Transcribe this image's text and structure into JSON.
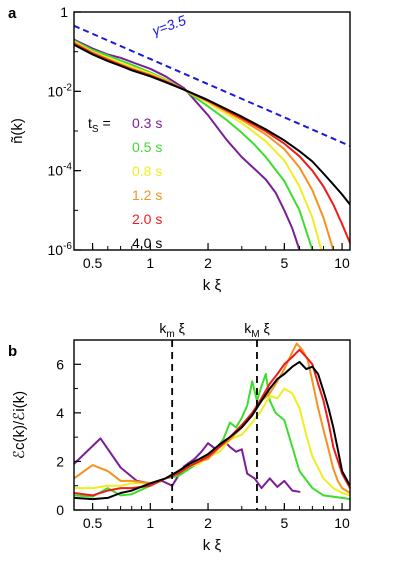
{
  "colors": {
    "c0.3": "#7a1e9a",
    "c0.5": "#3fdc2e",
    "c0.8": "#eeee22",
    "c1.2": "#f6921e",
    "c2.0": "#ee1c1c",
    "c4.0": "#000000",
    "fit": "#1a1adb",
    "marker": "#000000"
  },
  "chart_data": [
    {
      "panel": "a",
      "type": "line",
      "xscale": "log",
      "yscale": "log",
      "xlim": [
        0.4,
        11
      ],
      "ylim": [
        1e-06,
        1
      ],
      "xlabel": "k ξ",
      "ylabel": "ñ(k)",
      "xticks": [
        {
          "v": 0.5,
          "label": "0.5"
        },
        {
          "v": 1,
          "label": "1"
        },
        {
          "v": 2,
          "label": "2"
        },
        {
          "v": 5,
          "label": "5"
        },
        {
          "v": 10,
          "label": "10"
        }
      ],
      "yticks": [
        {
          "v": 1,
          "base": "1",
          "exp": ""
        },
        {
          "v": 0.01,
          "base": "10",
          "exp": "-2"
        },
        {
          "v": 0.0001,
          "base": "10",
          "exp": "-4"
        },
        {
          "v": 1e-06,
          "base": "10",
          "exp": "-6"
        }
      ],
      "legend_title": {
        "main": "t",
        "sub": "S",
        "rest": " ="
      },
      "fit_line": {
        "label": "γ=3.5",
        "x": [
          0.4,
          11
        ],
        "y": [
          0.45,
          0.00042
        ]
      },
      "series": [
        {
          "name": "0.3 s",
          "color_key": "c0.3",
          "x": [
            0.4,
            0.5,
            0.6,
            0.7,
            0.8,
            1.0,
            1.2,
            1.5,
            2.0,
            2.5,
            3.0,
            3.5,
            4.0,
            4.5,
            5.0,
            5.5,
            6.0
          ],
          "y": [
            0.2,
            0.12,
            0.085,
            0.07,
            0.055,
            0.037,
            0.024,
            0.012,
            0.0025,
            0.0006,
            0.00022,
            0.00011,
            6e-05,
            2.8e-05,
            1e-05,
            3.5e-06,
            1e-06
          ]
        },
        {
          "name": "0.5 s",
          "color_key": "c0.5",
          "x": [
            0.4,
            0.5,
            0.6,
            0.7,
            0.8,
            1.0,
            1.2,
            1.5,
            2.0,
            2.5,
            3.0,
            3.5,
            4.0,
            5.0,
            6.0,
            7.0
          ],
          "y": [
            0.19,
            0.11,
            0.08,
            0.06,
            0.047,
            0.03,
            0.02,
            0.011,
            0.0042,
            0.0019,
            0.0009,
            0.00045,
            0.00022,
            5.5e-05,
            1e-05,
            1e-06
          ]
        },
        {
          "name": "0.8 s",
          "color_key": "c0.8",
          "x": [
            0.4,
            0.5,
            0.6,
            0.7,
            0.8,
            1.0,
            1.2,
            1.5,
            2.0,
            3.0,
            4.0,
            5.0,
            6.0,
            7.0,
            7.8
          ],
          "y": [
            0.18,
            0.1,
            0.07,
            0.052,
            0.041,
            0.028,
            0.019,
            0.011,
            0.0052,
            0.0016,
            0.00055,
            0.00018,
            4e-05,
            6.5e-06,
            1e-06
          ]
        },
        {
          "name": "1.2 s",
          "color_key": "c1.2",
          "x": [
            0.4,
            0.5,
            0.6,
            0.7,
            0.8,
            1.0,
            1.2,
            1.5,
            2.0,
            3.0,
            4.0,
            5.0,
            6.0,
            7.0,
            8.0,
            9.0
          ],
          "y": [
            0.17,
            0.095,
            0.065,
            0.048,
            0.037,
            0.026,
            0.018,
            0.011,
            0.0056,
            0.0019,
            0.00082,
            0.00035,
            0.00012,
            3.2e-05,
            6.5e-06,
            1e-06
          ]
        },
        {
          "name": "2.0 s",
          "color_key": "c2.0",
          "x": [
            0.4,
            0.5,
            0.6,
            0.7,
            0.8,
            1.0,
            1.2,
            1.5,
            2.0,
            3.0,
            4.0,
            5.0,
            6.0,
            7.0,
            8.0,
            9.0,
            10.0,
            11.0
          ],
          "y": [
            0.16,
            0.09,
            0.062,
            0.046,
            0.036,
            0.025,
            0.018,
            0.011,
            0.0058,
            0.0021,
            0.00098,
            0.00048,
            0.00023,
            0.0001,
            4e-05,
            1.4e-05,
            4.5e-06,
            1.5e-06
          ]
        },
        {
          "name": "4.0 s",
          "color_key": "c4.0",
          "x": [
            0.4,
            0.5,
            0.6,
            0.7,
            0.8,
            1.0,
            1.2,
            1.5,
            2.0,
            3.0,
            4.0,
            5.0,
            6.0,
            7.0,
            8.0,
            9.0,
            10.0,
            11.0
          ],
          "y": [
            0.15,
            0.085,
            0.058,
            0.044,
            0.034,
            0.024,
            0.017,
            0.011,
            0.006,
            0.0023,
            0.0011,
            0.00058,
            0.00031,
            0.00017,
            8.5e-05,
            4.5e-05,
            2.5e-05,
            1.4e-05
          ]
        }
      ]
    },
    {
      "panel": "b",
      "type": "line",
      "xscale": "log",
      "yscale": "linear",
      "xlim": [
        0.4,
        11
      ],
      "ylim": [
        0,
        7
      ],
      "xlabel": "k ξ",
      "ylabel": "ℰc(k)/ℰi(k)",
      "xticks": [
        {
          "v": 0.5,
          "label": "0.5"
        },
        {
          "v": 1,
          "label": "1"
        },
        {
          "v": 2,
          "label": "2"
        },
        {
          "v": 5,
          "label": "5"
        },
        {
          "v": 10,
          "label": "10"
        }
      ],
      "yticks": [
        {
          "v": 0,
          "label": "0"
        },
        {
          "v": 2,
          "label": "2"
        },
        {
          "v": 4,
          "label": "4"
        },
        {
          "v": 6,
          "label": "6"
        }
      ],
      "vlines": [
        {
          "x": 1.3,
          "main": "k",
          "sub": "m",
          "rest": " ξ"
        },
        {
          "x": 3.6,
          "main": "k",
          "sub": "M",
          "rest": " ξ"
        }
      ],
      "series": [
        {
          "name": "0.3 s",
          "color_key": "c0.3",
          "x": [
            0.4,
            0.55,
            0.7,
            0.85,
            1.0,
            1.15,
            1.3,
            1.5,
            1.7,
            1.85,
            2.0,
            2.2,
            2.4,
            2.6,
            2.8,
            3.0,
            3.2,
            3.5,
            3.8,
            4.2,
            4.6,
            5.0,
            5.5,
            6.0
          ],
          "y": [
            1.9,
            2.95,
            1.75,
            1.2,
            1.1,
            1.2,
            1.0,
            1.8,
            2.1,
            2.4,
            2.75,
            2.5,
            2.9,
            2.6,
            2.4,
            2.5,
            1.5,
            1.3,
            0.9,
            1.3,
            0.95,
            1.2,
            0.8,
            0.75
          ]
        },
        {
          "name": "0.5 s",
          "color_key": "c0.5",
          "x": [
            0.4,
            0.5,
            0.6,
            0.7,
            0.8,
            1.0,
            1.2,
            1.4,
            1.6,
            1.8,
            2.0,
            2.2,
            2.4,
            2.6,
            2.8,
            3.0,
            3.2,
            3.4,
            3.6,
            3.8,
            4.0,
            4.2,
            4.5,
            5.0,
            5.5,
            6.0,
            7.0,
            8.0,
            10.0,
            11.0
          ],
          "y": [
            0.6,
            0.55,
            0.9,
            0.6,
            0.65,
            1.0,
            1.3,
            1.4,
            1.7,
            1.95,
            2.3,
            2.5,
            2.9,
            3.6,
            3.4,
            3.8,
            4.3,
            5.3,
            4.5,
            5.1,
            5.6,
            4.5,
            4.0,
            3.7,
            2.6,
            1.6,
            0.9,
            0.6,
            0.5,
            0.45
          ]
        },
        {
          "name": "0.8 s",
          "color_key": "c0.8",
          "x": [
            0.4,
            0.5,
            0.6,
            0.7,
            0.8,
            1.0,
            1.2,
            1.4,
            1.6,
            1.8,
            2.0,
            2.3,
            2.6,
            3.0,
            3.4,
            3.8,
            4.2,
            4.6,
            5.0,
            5.5,
            6.0,
            6.5,
            7.0,
            8.0,
            9.0,
            10.0,
            11.0
          ],
          "y": [
            0.9,
            0.9,
            1.0,
            1.0,
            1.1,
            1.1,
            1.3,
            1.5,
            1.8,
            1.9,
            2.2,
            2.4,
            2.9,
            3.1,
            3.6,
            4.1,
            4.7,
            4.6,
            5.0,
            4.8,
            4.2,
            3.1,
            2.2,
            1.3,
            0.9,
            0.7,
            0.6
          ]
        },
        {
          "name": "1.2 s",
          "color_key": "c1.2",
          "x": [
            0.4,
            0.5,
            0.6,
            0.7,
            0.8,
            1.0,
            1.2,
            1.4,
            1.6,
            1.8,
            2.0,
            2.3,
            2.6,
            3.0,
            3.4,
            3.8,
            4.2,
            4.6,
            5.0,
            5.5,
            5.8,
            6.2,
            6.6,
            7.0,
            7.5,
            8.0,
            8.5,
            9.0,
            9.5,
            10.0,
            11.0
          ],
          "y": [
            1.3,
            1.85,
            1.6,
            1.2,
            1.2,
            1.1,
            1.3,
            1.6,
            1.8,
            2.0,
            2.1,
            2.6,
            2.9,
            3.4,
            3.9,
            4.5,
            4.8,
            5.3,
            5.8,
            6.5,
            6.85,
            6.6,
            6.2,
            5.3,
            4.2,
            3.3,
            2.5,
            1.7,
            1.2,
            0.9,
            0.7
          ]
        },
        {
          "name": "2.0 s",
          "color_key": "c2.0",
          "x": [
            0.4,
            0.5,
            0.6,
            0.7,
            0.8,
            1.0,
            1.2,
            1.4,
            1.6,
            1.8,
            2.0,
            2.3,
            2.6,
            3.0,
            3.4,
            3.8,
            4.2,
            4.6,
            5.0,
            5.5,
            6.0,
            6.5,
            7.0,
            7.5,
            8.0,
            8.5,
            9.0,
            10.0,
            11.0
          ],
          "y": [
            0.7,
            0.6,
            0.8,
            0.9,
            0.9,
            1.0,
            1.3,
            1.5,
            1.8,
            2.0,
            2.2,
            2.6,
            3.0,
            3.5,
            4.0,
            4.6,
            5.2,
            5.6,
            6.0,
            6.3,
            6.6,
            6.3,
            6.0,
            5.2,
            4.5,
            3.6,
            2.6,
            1.5,
            0.9
          ]
        },
        {
          "name": "4.0 s",
          "color_key": "c4.0",
          "x": [
            0.4,
            0.5,
            0.6,
            0.7,
            0.8,
            1.0,
            1.2,
            1.4,
            1.6,
            1.8,
            2.0,
            2.3,
            2.6,
            3.0,
            3.4,
            3.8,
            4.2,
            4.6,
            5.0,
            5.5,
            6.0,
            6.5,
            7.0,
            7.5,
            8.0,
            8.5,
            9.0,
            9.5,
            10.0,
            11.0
          ],
          "y": [
            0.5,
            0.45,
            0.5,
            0.7,
            0.8,
            1.1,
            1.3,
            1.6,
            1.9,
            2.1,
            2.3,
            2.7,
            3.0,
            3.4,
            3.9,
            4.5,
            5.0,
            5.4,
            5.6,
            5.9,
            6.1,
            5.8,
            5.9,
            5.6,
            4.9,
            4.2,
            3.4,
            2.5,
            1.6,
            1.0
          ]
        }
      ]
    }
  ]
}
